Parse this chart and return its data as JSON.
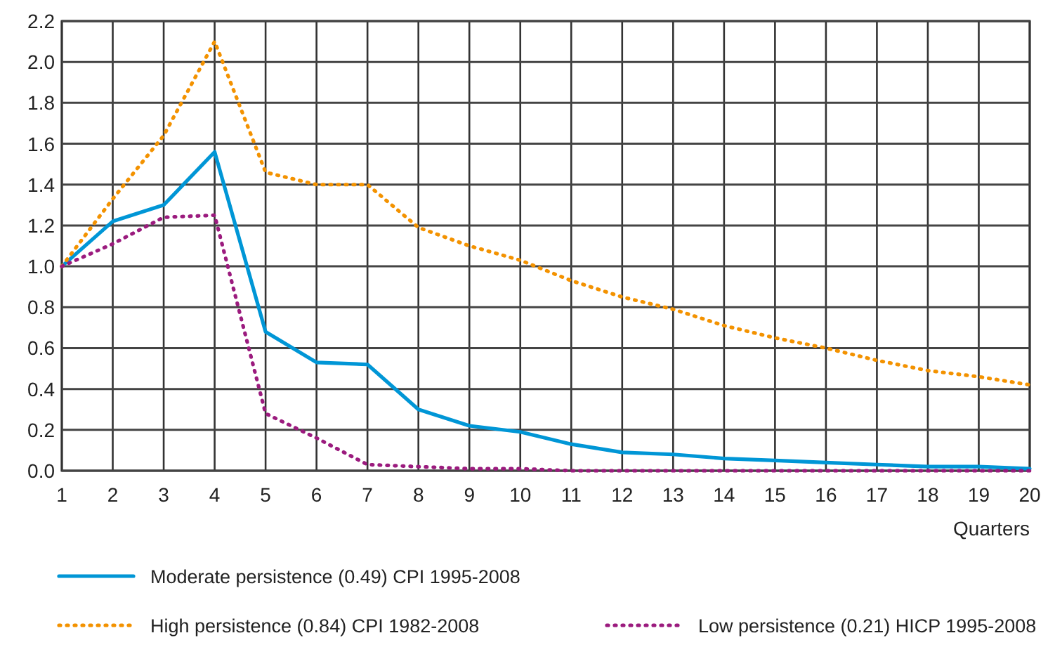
{
  "chart_data": {
    "type": "line",
    "xlabel": "Quarters",
    "x": [
      1,
      2,
      3,
      4,
      5,
      6,
      7,
      8,
      9,
      10,
      11,
      12,
      13,
      14,
      15,
      16,
      17,
      18,
      19,
      20
    ],
    "xlim": [
      1,
      20
    ],
    "xticks": [
      1,
      2,
      3,
      4,
      5,
      6,
      7,
      8,
      9,
      10,
      11,
      12,
      13,
      14,
      15,
      16,
      17,
      18,
      19,
      20
    ],
    "ylim": [
      0,
      2.2
    ],
    "yticks": [
      {
        "value": 0,
        "label": "0.0"
      },
      {
        "value": 0.2,
        "label": "0.2"
      },
      {
        "value": 0.4,
        "label": "0.4"
      },
      {
        "value": 0.6,
        "label": "0.6"
      },
      {
        "value": 0.8,
        "label": "0.8"
      },
      {
        "value": 1,
        "label": "1.0"
      },
      {
        "value": 1.2,
        "label": "1.2"
      },
      {
        "value": 1.4,
        "label": "1.4"
      },
      {
        "value": 1.6,
        "label": "1.6"
      },
      {
        "value": 1.8,
        "label": "1.8"
      },
      {
        "value": 2,
        "label": "2.0"
      },
      {
        "value": 2.2,
        "label": "2.2"
      }
    ],
    "grid": true,
    "legend": "bottom",
    "series": [
      {
        "name": "Moderate persistence (0.49) CPI 1995-2008",
        "color": "#0096d6",
        "line_style": "solid",
        "values": [
          1.0,
          1.22,
          1.3,
          1.56,
          0.68,
          0.53,
          0.52,
          0.3,
          0.22,
          0.19,
          0.13,
          0.09,
          0.08,
          0.06,
          0.05,
          0.04,
          0.03,
          0.02,
          0.02,
          0.01
        ]
      },
      {
        "name": "High persistence (0.84) CPI 1982-2008",
        "color": "#f39200",
        "line_style": "dotted",
        "values": [
          1.0,
          1.33,
          1.64,
          2.1,
          1.46,
          1.4,
          1.4,
          1.19,
          1.1,
          1.03,
          0.93,
          0.85,
          0.79,
          0.71,
          0.65,
          0.6,
          0.54,
          0.49,
          0.46,
          0.42
        ]
      },
      {
        "name": "Low persistence (0.21) HICP 1995-2008",
        "color": "#9b1b7e",
        "line_style": "dotted",
        "values": [
          1.0,
          1.11,
          1.24,
          1.25,
          0.28,
          0.16,
          0.03,
          0.02,
          0.01,
          0.01,
          0,
          0,
          0,
          0,
          0,
          0,
          0,
          0,
          0,
          0
        ]
      }
    ]
  }
}
